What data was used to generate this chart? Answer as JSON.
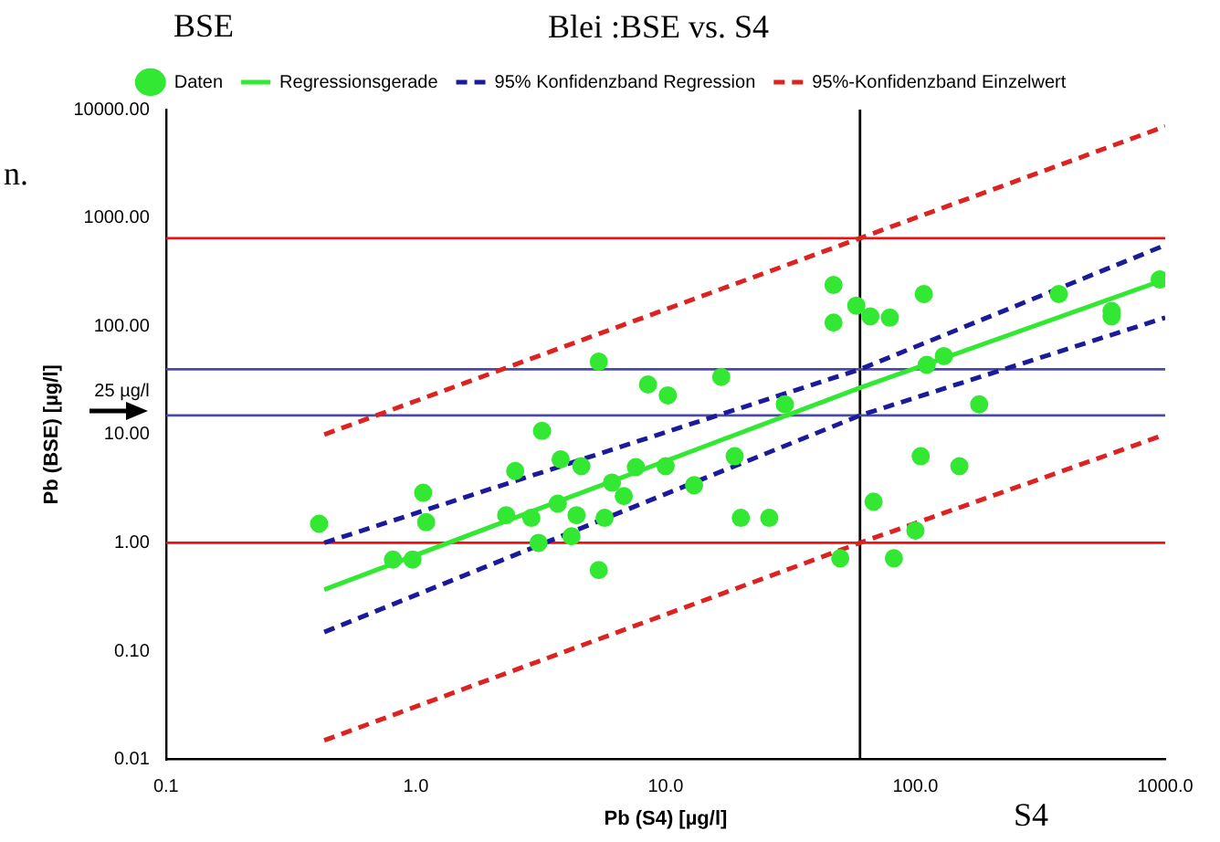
{
  "chart_data": {
    "type": "scatter",
    "title": "Blei :BSE vs. S4",
    "xlabel": "Pb (S4) [µg/l]",
    "ylabel": "Pb (BSE) [µg/l]",
    "annotations": [
      "BSE",
      "S4",
      "n."
    ],
    "log": "xy",
    "grid": false,
    "legend": "top",
    "xlim": [
      0.1,
      1000
    ],
    "ylim": [
      0.01,
      10000
    ],
    "xticks": [
      {
        "value": 0.1,
        "label": "0.1"
      },
      {
        "value": 1,
        "label": "1.0"
      },
      {
        "value": 10,
        "label": "10.0"
      },
      {
        "value": 100,
        "label": "100.0"
      },
      {
        "value": 1000,
        "label": "1000.0"
      }
    ],
    "yticks": [
      {
        "value": 0.01,
        "label": "0.01"
      },
      {
        "value": 0.1,
        "label": "0.10"
      },
      {
        "value": 1,
        "label": "1.00"
      },
      {
        "value": 10,
        "label": "10.00"
      },
      {
        "value": 25,
        "label": "25 µg/l"
      },
      {
        "value": 100,
        "label": "100.00"
      },
      {
        "value": 1000,
        "label": "1000.00"
      },
      {
        "value": 10000,
        "label": "10000.00"
      }
    ],
    "series": [
      {
        "name": "Daten",
        "marker": "circle",
        "color": "#33e833",
        "x": [
          47,
          47,
          58,
          66,
          79,
          108,
          375,
          610,
          610,
          950,
          111,
          130,
          180,
          105,
          150,
          68,
          100,
          82,
          50,
          30,
          16.7,
          10.2,
          8.5,
          5.4,
          18.9,
          13,
          20,
          26,
          10,
          7.6,
          6.1,
          5.7,
          6.8,
          4.6,
          3.8,
          3.2,
          2.5,
          3.7,
          4.4,
          2.9,
          2.3,
          3.1,
          4.2,
          1.07,
          1.1,
          0.41,
          0.81,
          0.97,
          5.4
        ],
        "values": [
          240,
          108,
          155,
          123,
          120,
          198,
          198,
          138,
          123,
          270,
          44,
          53,
          19,
          6.3,
          5.1,
          2.4,
          1.3,
          0.72,
          0.72,
          19,
          34,
          23,
          29,
          47,
          6.3,
          3.4,
          1.7,
          1.7,
          5.1,
          5,
          3.6,
          1.7,
          2.7,
          5.1,
          5.9,
          10.8,
          4.6,
          2.3,
          1.8,
          1.7,
          1.8,
          1,
          1.15,
          2.9,
          1.55,
          1.5,
          0.7,
          0.7,
          0.56
        ]
      },
      {
        "name": "Regressionsgerade",
        "type": "line",
        "marker": "none",
        "line_style": "solid",
        "color": "#33e833",
        "x": [
          0.43,
          60,
          1000
        ],
        "values": [
          0.37,
          27,
          270
        ]
      },
      {
        "name": "95% Konfidenzband Regression",
        "type": "line",
        "marker": "none",
        "line_style": "dashed",
        "color": "#1a1a9a",
        "x": [
          0.43,
          60,
          1000
        ],
        "values": [
          1,
          40,
          560
        ]
      },
      {
        "type": "line",
        "marker": "none",
        "line_style": "dashed",
        "color": "#1a1a9a",
        "x": [
          0.43,
          60,
          1000
        ],
        "values": [
          0.15,
          15,
          120
        ]
      },
      {
        "name": "95%-Konfidenzband Einzelwert",
        "type": "line",
        "marker": "none",
        "line_style": "dashed",
        "color": "#dd2222",
        "x": [
          0.43,
          60,
          1000
        ],
        "values": [
          10,
          650,
          7000
        ]
      },
      {
        "type": "line",
        "marker": "none",
        "line_style": "dashed",
        "color": "#dd2222",
        "x": [
          0.43,
          60,
          1000
        ],
        "values": [
          0.015,
          1,
          10
        ]
      }
    ],
    "ref_lines": [
      {
        "axis": "x",
        "value": 60,
        "color": "#000000"
      },
      {
        "axis": "y",
        "value": 1,
        "color": "#ee1111"
      },
      {
        "axis": "y",
        "value": 650,
        "color": "#ee1111"
      },
      {
        "axis": "y",
        "value": 40,
        "color": "#4a4aaa"
      },
      {
        "axis": "y",
        "value": 15,
        "color": "#4a4aaa"
      }
    ]
  }
}
